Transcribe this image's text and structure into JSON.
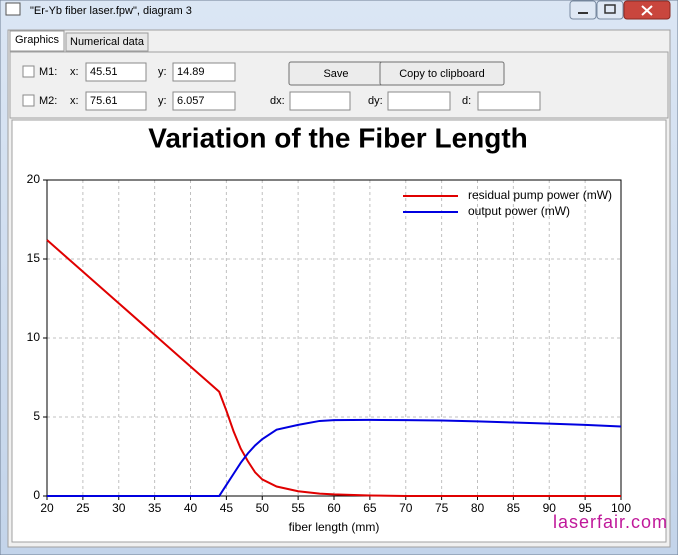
{
  "window": {
    "title": "\"Er-Yb fiber laser.fpw\", diagram 3",
    "tabs": [
      "Graphics",
      "Numerical data"
    ]
  },
  "markers": {
    "m1": {
      "label": "M1:",
      "x_label": "x:",
      "x": "45.51",
      "y_label": "y:",
      "y": "14.89"
    },
    "m2": {
      "label": "M2:",
      "x_label": "x:",
      "x": "75.61",
      "y_label": "y:",
      "y": "6.057",
      "dx_label": "dx:",
      "dy_label": "dy:",
      "d_label": "d:"
    }
  },
  "buttons": [
    "Save",
    "Copy to clipboard"
  ],
  "chart_data": {
    "type": "line",
    "title": "Variation of the Fiber Length",
    "xlabel": "fiber length (mm)",
    "x": [
      20,
      25,
      30,
      35,
      40,
      44,
      45,
      46,
      47,
      48,
      49,
      50,
      52,
      55,
      58,
      60,
      65,
      70,
      75,
      80,
      85,
      90,
      95,
      100
    ],
    "series": [
      {
        "name": "residual pump power (mW)",
        "color": "#e00000",
        "values": [
          16.2,
          14.2,
          12.2,
          10.2,
          8.2,
          6.6,
          5.4,
          4.1,
          3.0,
          2.2,
          1.5,
          1.05,
          0.6,
          0.3,
          0.15,
          0.1,
          0.03,
          0,
          0,
          0,
          0,
          0,
          0,
          0
        ]
      },
      {
        "name": "output power (mW)",
        "color": "#0000e0",
        "values": [
          0,
          0,
          0,
          0,
          0,
          0,
          0.7,
          1.4,
          2.1,
          2.7,
          3.2,
          3.6,
          4.2,
          4.5,
          4.75,
          4.8,
          4.82,
          4.8,
          4.78,
          4.72,
          4.65,
          4.58,
          4.5,
          4.4
        ]
      }
    ],
    "xlim": [
      20,
      100
    ],
    "ylim": [
      0,
      20
    ],
    "xticks": [
      20,
      25,
      30,
      35,
      40,
      45,
      50,
      55,
      60,
      65,
      70,
      75,
      80,
      85,
      90,
      95,
      100
    ],
    "yticks": [
      0,
      5,
      10,
      15,
      20
    ],
    "grid": true,
    "legend": "upper right"
  },
  "watermark": "laserfair.com"
}
